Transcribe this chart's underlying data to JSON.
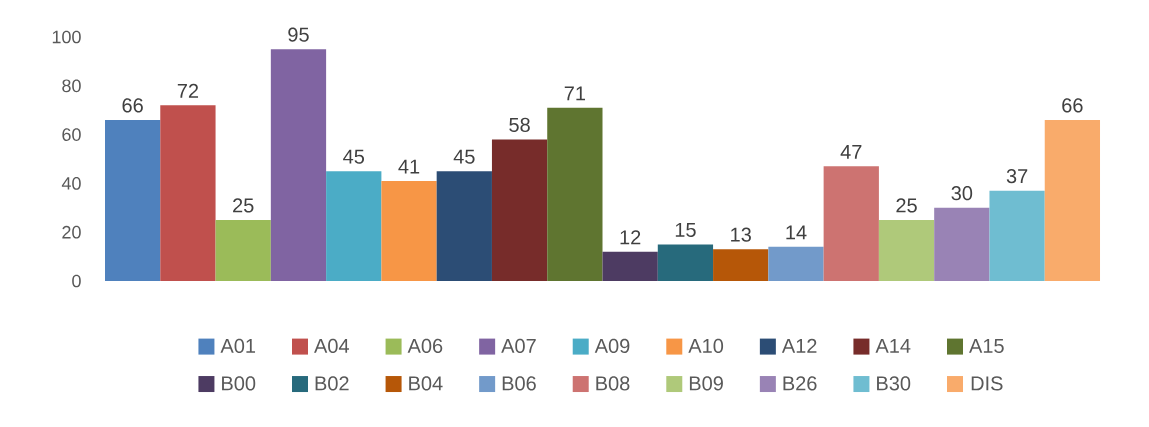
{
  "chart_data": {
    "type": "bar",
    "categories": [
      null
    ],
    "series": [
      {
        "name": "A01",
        "color": "#4f81bd",
        "values": [
          66
        ]
      },
      {
        "name": "A04",
        "color": "#c0504d",
        "values": [
          72
        ]
      },
      {
        "name": "A06",
        "color": "#9bbb59",
        "values": [
          25
        ]
      },
      {
        "name": "A07",
        "color": "#8064a2",
        "values": [
          95
        ]
      },
      {
        "name": "A09",
        "color": "#4bacc6",
        "values": [
          45
        ]
      },
      {
        "name": "A10",
        "color": "#f79646",
        "values": [
          41
        ]
      },
      {
        "name": "A12",
        "color": "#2c4d75",
        "values": [
          45
        ]
      },
      {
        "name": "A14",
        "color": "#772c2a",
        "values": [
          58
        ]
      },
      {
        "name": "A15",
        "color": "#5f7530",
        "values": [
          71
        ]
      },
      {
        "name": "B00",
        "color": "#4d3b62",
        "values": [
          12
        ]
      },
      {
        "name": "B02",
        "color": "#276a7c",
        "values": [
          15
        ]
      },
      {
        "name": "B04",
        "color": "#b65708",
        "values": [
          13
        ]
      },
      {
        "name": "B06",
        "color": "#729aca",
        "values": [
          14
        ]
      },
      {
        "name": "B08",
        "color": "#cd7371",
        "values": [
          47
        ]
      },
      {
        "name": "B09",
        "color": "#afc97a",
        "values": [
          25
        ]
      },
      {
        "name": "B26",
        "color": "#9983b5",
        "values": [
          30
        ]
      },
      {
        "name": "B30",
        "color": "#6fbdd1",
        "values": [
          37
        ]
      },
      {
        "name": "DIS",
        "color": "#f9ab6b",
        "values": [
          66
        ]
      }
    ],
    "ylim": [
      0,
      100
    ],
    "yticks": [
      0,
      20,
      40,
      60,
      80,
      100
    ],
    "data_labels": true,
    "legend": "bottom"
  }
}
